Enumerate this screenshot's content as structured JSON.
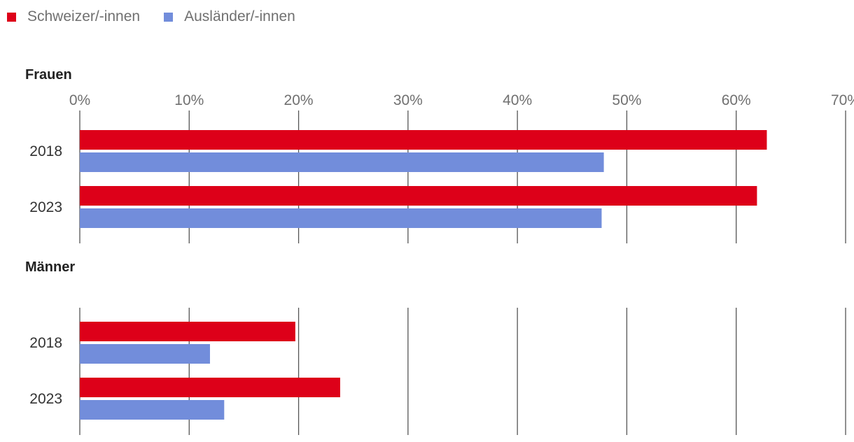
{
  "legend": [
    {
      "label": "Schweizer/-innen",
      "color": "#dd0019"
    },
    {
      "label": "Ausländer/-innen",
      "color": "#728ddb"
    }
  ],
  "chart_data": {
    "type": "bar",
    "orientation": "horizontal",
    "unit": "%",
    "xlim": [
      0,
      70
    ],
    "ticks": [
      0,
      10,
      20,
      30,
      40,
      50,
      60,
      70
    ],
    "tick_labels": [
      "0%",
      "10%",
      "20%",
      "30%",
      "40%",
      "50%",
      "60%",
      "70%"
    ],
    "grid": true,
    "legend_position": "top-left",
    "panels": [
      {
        "title": "Frauen",
        "categories": [
          "2018",
          "2023"
        ],
        "series": [
          {
            "name": "Schweizer/-innen",
            "color": "#dd0019",
            "values": [
              62.8,
              61.9
            ]
          },
          {
            "name": "Ausländer/-innen",
            "color": "#728ddb",
            "values": [
              47.9,
              47.7
            ]
          }
        ]
      },
      {
        "title": "Männer",
        "categories": [
          "2018",
          "2023"
        ],
        "series": [
          {
            "name": "Schweizer/-innen",
            "color": "#dd0019",
            "values": [
              19.7,
              23.8
            ]
          },
          {
            "name": "Ausländer/-innen",
            "color": "#728ddb",
            "values": [
              11.9,
              13.2
            ]
          }
        ]
      }
    ]
  }
}
